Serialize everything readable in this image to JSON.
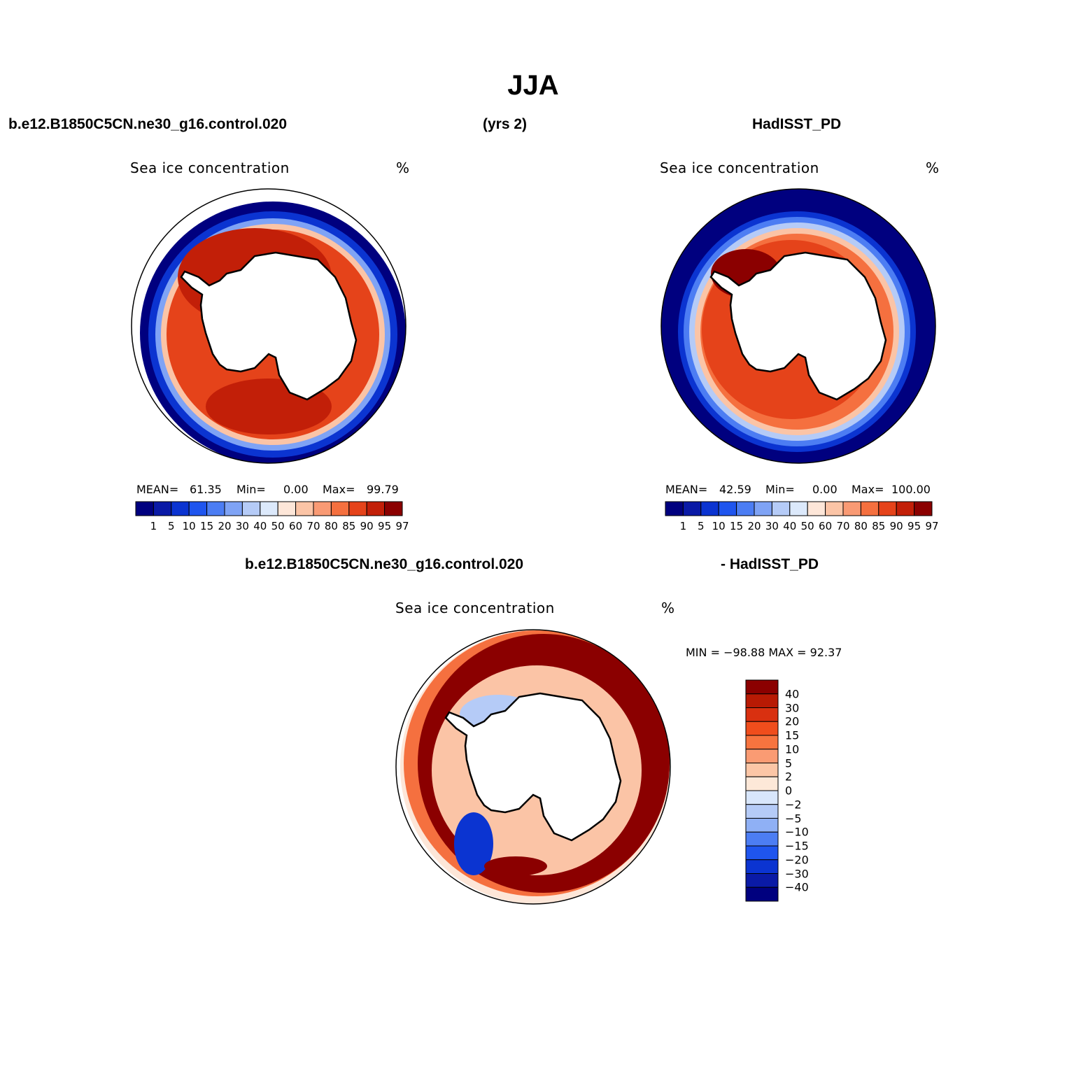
{
  "figure": {
    "title": "JJA",
    "top_left_case": "b.e12.B1850C5CN.ne30_g16.control.020",
    "top_years": "(yrs 2)",
    "top_right_case": "HadISST_PD",
    "bottom_case": "b.e12.B1850C5CN.ne30_g16.control.020",
    "bottom_ref": "- HadISST_PD"
  },
  "panels": {
    "model": {
      "variable": "Sea ice concentration",
      "units": "%",
      "mean_label": "MEAN=",
      "mean": "61.35",
      "min_label": "Min=",
      "min": "0.00",
      "max_label": "Max=",
      "max": "99.79"
    },
    "obs": {
      "variable": "Sea ice concentration",
      "units": "%",
      "mean_label": "MEAN=",
      "mean": "42.59",
      "min_label": "Min=",
      "min": "0.00",
      "max_label": "Max=",
      "max": "100.00"
    },
    "diff": {
      "variable": "Sea ice concentration",
      "units": "%",
      "minmax": "MIN = −98.88 MAX =  92.37"
    }
  },
  "legend_abs": {
    "levels": [
      "1",
      "5",
      "10",
      "15",
      "20",
      "30",
      "40",
      "50",
      "60",
      "70",
      "80",
      "85",
      "90",
      "95",
      "97"
    ],
    "colors": [
      "#00007f",
      "#0a1aa6",
      "#0b34d1",
      "#1f55ee",
      "#4c7df3",
      "#7fa3f5",
      "#b5cbf7",
      "#dce9fb",
      "#fde6d8",
      "#fbc4a6",
      "#f99a74",
      "#f5703f",
      "#e5431a",
      "#c21f08",
      "#8b0000"
    ]
  },
  "legend_diff": {
    "levels": [
      "40",
      "30",
      "20",
      "15",
      "10",
      "5",
      "2",
      "0",
      "−2",
      "−5",
      "−10",
      "−15",
      "−20",
      "−30",
      "−40"
    ],
    "colors": [
      "#8b0000",
      "#b81a04",
      "#d93010",
      "#f04d1c",
      "#f7743f",
      "#fa9b73",
      "#fcc6a6",
      "#fde8d8",
      "#d8e6fb",
      "#b5cbf7",
      "#8fb0f5",
      "#4c7df3",
      "#1f55ee",
      "#0b34d1",
      "#0a1aa6",
      "#00007f"
    ]
  },
  "map_colors": {
    "ocean_line": "#000000",
    "land": "#ffffff",
    "ice_core": "#c21f08",
    "ice_mid": "#e5431a",
    "ice_edge": "#f5703f",
    "ice_fringe": "#fbc4a6",
    "water_low": "#0a1aa6",
    "water_mid": "#4c7df3",
    "water_light": "#b5cbf7",
    "deep_blue": "#00007f",
    "diff_pos_strong": "#8b0000",
    "diff_pos_mid": "#e5431a",
    "diff_pos_weak": "#fbc4a6",
    "diff_neg_weak": "#b5cbf7",
    "diff_neg_mid": "#4c7df3",
    "diff_neg_strong": "#0b34d1"
  }
}
